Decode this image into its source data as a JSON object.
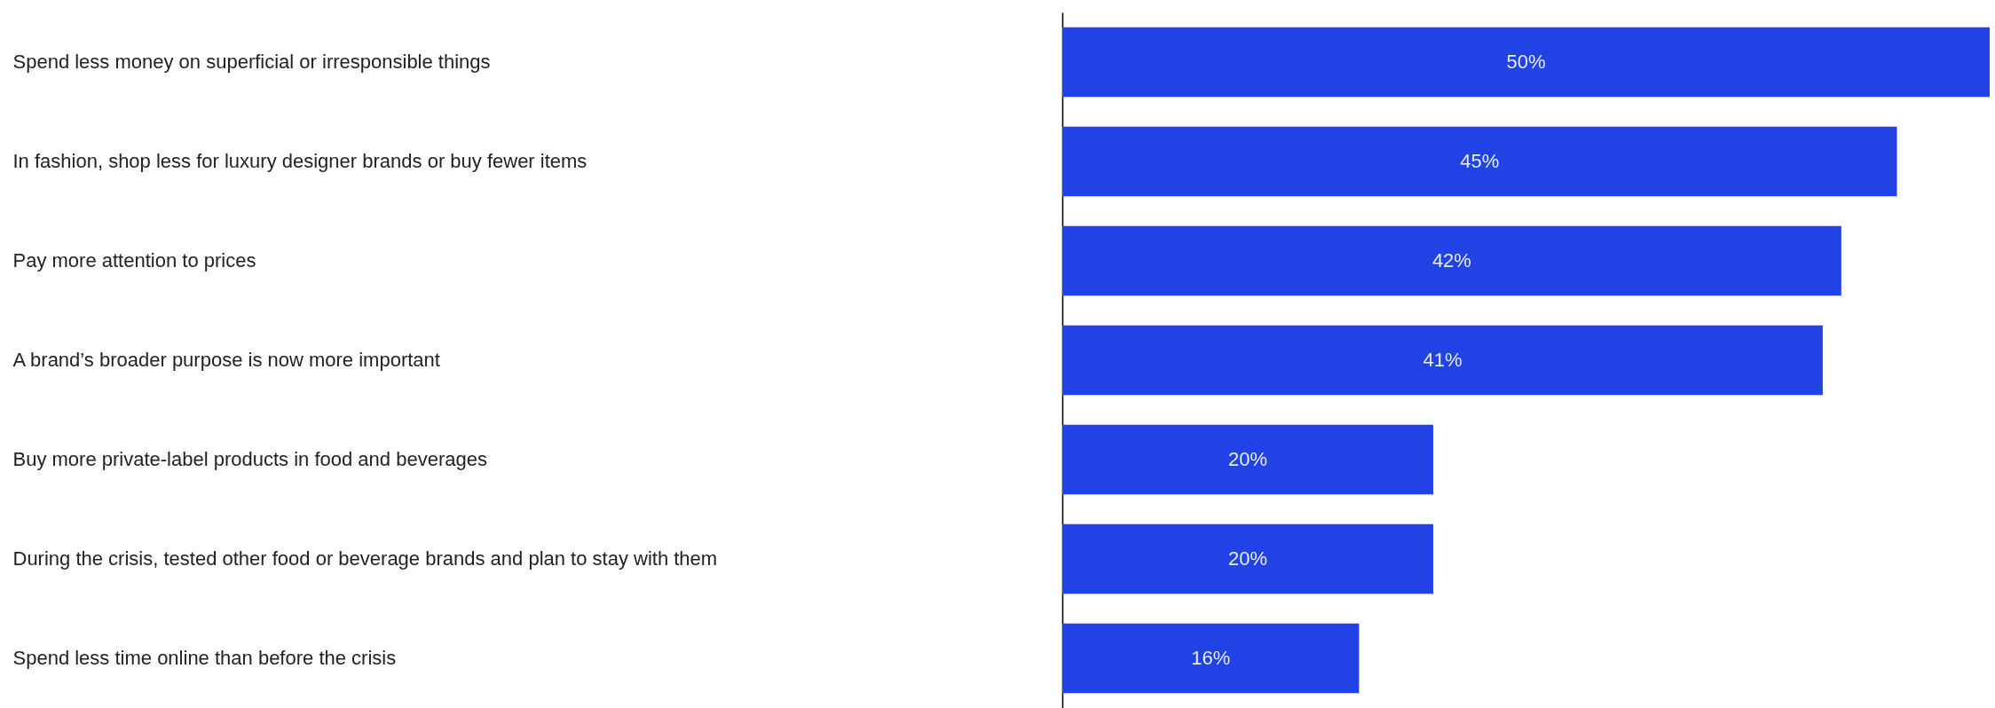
{
  "chart_data": {
    "type": "bar",
    "orientation": "horizontal",
    "categories": [
      "Spend less money on superficial or irresponsible things",
      "In fashion, shop less for luxury designer brands or buy fewer items",
      "Pay more attention to prices",
      "A brand’s broader purpose is now more important",
      "Buy more private-label products in food and beverages",
      "During the crisis, tested other food or beverage brands and plan to stay with them",
      "Spend less time online than before the crisis"
    ],
    "values": [
      50,
      45,
      42,
      41,
      20,
      20,
      16
    ],
    "value_labels": [
      "50%",
      "45%",
      "42%",
      "41%",
      "20%",
      "20%",
      "16%"
    ],
    "color": "#2143e6"
  }
}
